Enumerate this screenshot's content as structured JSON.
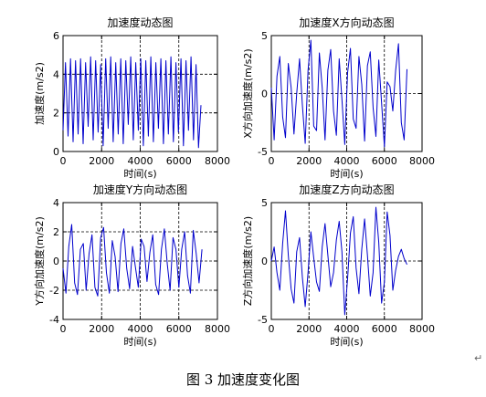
{
  "figure_caption": "图 3  加速度变化图",
  "paragraph_mark": "↵",
  "series_color": "#0000cc",
  "chart_data": [
    {
      "type": "line",
      "title": "加速度动态图",
      "xlabel": "时间(s)",
      "ylabel": "加速度(m/s2)",
      "xlim": [
        0,
        8000
      ],
      "ylim": [
        0,
        6
      ],
      "xticks": [
        0,
        2000,
        4000,
        6000,
        8000
      ],
      "yticks": [
        0,
        2,
        4,
        6
      ],
      "grid_lines_y": [
        2,
        4
      ],
      "grid_lines_x": [
        2000,
        4000,
        6000
      ],
      "grid_style": "dashed",
      "series": [
        {
          "x": [
            0,
            130,
            260,
            390,
            520,
            650,
            780,
            910,
            1040,
            1170,
            1300,
            1430,
            1560,
            1690,
            1820,
            1950,
            2080,
            2210,
            2340,
            2470,
            2600,
            2730,
            2860,
            2990,
            3120,
            3250,
            3380,
            3510,
            3640,
            3770,
            3900,
            4030,
            4160,
            4290,
            4420,
            4550,
            4680,
            4810,
            4940,
            5070,
            5200,
            5330,
            5460,
            5590,
            5720,
            5850,
            5980,
            6110,
            6240,
            6370,
            6500,
            6630,
            6760,
            6890,
            7020,
            7150
          ],
          "values": [
            1.1,
            4.6,
            0.8,
            4.8,
            0.5,
            4.7,
            0.9,
            4.8,
            0.4,
            4.6,
            1.3,
            4.9,
            0.6,
            4.7,
            1.0,
            4.5,
            0.3,
            4.8,
            1.2,
            4.9,
            0.5,
            4.6,
            0.9,
            4.8,
            0.4,
            4.7,
            1.4,
            4.9,
            0.6,
            4.6,
            1.1,
            4.8,
            0.3,
            4.7,
            0.8,
            4.9,
            0.5,
            4.6,
            1.2,
            4.8,
            0.4,
            4.7,
            0.9,
            4.9,
            0.5,
            4.6,
            1.0,
            4.8,
            0.3,
            4.7,
            1.1,
            4.9,
            0.6,
            4.5,
            0.2,
            2.4
          ]
        }
      ]
    },
    {
      "type": "line",
      "title": "加速度X方向动态图",
      "xlabel": "时间(s)",
      "ylabel": "X方向加速度(m/s2)",
      "xlim": [
        0,
        8000
      ],
      "ylim": [
        -5,
        5
      ],
      "xticks": [
        0,
        2000,
        4000,
        6000,
        8000
      ],
      "yticks": [
        -5,
        0,
        5
      ],
      "grid_lines_y": [
        0
      ],
      "grid_lines_x": [
        2000,
        4000,
        6000
      ],
      "grid_style": "dashed",
      "series": [
        {
          "x": [
            0,
            150,
            300,
            450,
            600,
            750,
            900,
            1050,
            1200,
            1350,
            1500,
            1650,
            1800,
            1950,
            2100,
            2250,
            2400,
            2550,
            2700,
            2850,
            3000,
            3150,
            3300,
            3450,
            3600,
            3750,
            3900,
            4050,
            4200,
            4350,
            4500,
            4650,
            4800,
            4950,
            5100,
            5250,
            5400,
            5550,
            5700,
            5850,
            6000,
            6150,
            6300,
            6450,
            6600,
            6750,
            6900,
            7050,
            7200
          ],
          "values": [
            0.5,
            -4.0,
            1.5,
            3.2,
            -2.0,
            -3.8,
            2.6,
            0.5,
            -3.5,
            0.0,
            3.0,
            -1.0,
            -4.3,
            2.0,
            4.6,
            -2.8,
            -3.2,
            3.5,
            0.5,
            -4.0,
            2.0,
            3.8,
            -1.5,
            -3.6,
            3.0,
            -0.5,
            -4.4,
            1.8,
            3.9,
            -2.2,
            -3.0,
            3.2,
            0.8,
            -4.1,
            2.4,
            3.6,
            -1.2,
            -3.7,
            2.9,
            -0.8,
            -4.6,
            1.0,
            0.6,
            -1.5,
            2.0,
            4.3,
            -2.5,
            -4.0,
            2.1
          ]
        }
      ]
    },
    {
      "type": "line",
      "title": "加速度Y方向动态图",
      "xlabel": "时间(s)",
      "ylabel": "Y方向加速度(m/s2)",
      "xlim": [
        0,
        8000
      ],
      "ylim": [
        -4,
        4
      ],
      "xticks": [
        0,
        2000,
        4000,
        6000,
        8000
      ],
      "yticks": [
        -4,
        -2,
        0,
        2,
        4
      ],
      "grid_lines_y": [
        -2,
        0,
        2
      ],
      "grid_lines_x": [
        2000,
        4000,
        6000
      ],
      "grid_style": "dashed",
      "series": [
        {
          "x": [
            0,
            150,
            300,
            450,
            600,
            750,
            900,
            1050,
            1200,
            1350,
            1500,
            1650,
            1800,
            1950,
            2100,
            2250,
            2400,
            2550,
            2700,
            2850,
            3000,
            3150,
            3300,
            3450,
            3600,
            3750,
            3900,
            4050,
            4200,
            4350,
            4500,
            4650,
            4800,
            4950,
            5100,
            5250,
            5400,
            5550,
            5700,
            5850,
            6000,
            6150,
            6300,
            6450,
            6600,
            6750,
            6900,
            7050,
            7200
          ],
          "values": [
            -0.5,
            -2.2,
            1.0,
            2.5,
            -1.5,
            -2.3,
            0.8,
            1.2,
            -2.0,
            0.5,
            1.8,
            -1.8,
            -2.4,
            1.6,
            2.3,
            -0.8,
            -2.2,
            1.4,
            0.3,
            -2.1,
            1.2,
            2.2,
            -0.5,
            -1.9,
            1.0,
            -0.4,
            -1.8,
            1.5,
            1.0,
            -1.4,
            0.6,
            1.8,
            -1.6,
            -2.3,
            0.8,
            2.2,
            -0.2,
            -2.0,
            1.6,
            0.8,
            -1.8,
            0.8,
            2.0,
            -1.0,
            -2.2,
            2.1,
            0.5,
            -1.5,
            0.8
          ]
        }
      ]
    },
    {
      "type": "line",
      "title": "加速度Z方向动态图",
      "xlabel": "时间(s)",
      "ylabel": "Z方向加速度(m/s2)",
      "xlim": [
        0,
        8000
      ],
      "ylim": [
        -5,
        5
      ],
      "xticks": [
        0,
        2000,
        4000,
        6000,
        8000
      ],
      "yticks": [
        -5,
        0,
        5
      ],
      "grid_lines_y": [
        0
      ],
      "grid_lines_x": [
        2000,
        4000,
        6000
      ],
      "grid_style": "dashed",
      "series": [
        {
          "x": [
            0,
            150,
            300,
            450,
            600,
            750,
            900,
            1050,
            1200,
            1350,
            1500,
            1650,
            1800,
            1950,
            2100,
            2250,
            2400,
            2550,
            2700,
            2850,
            3000,
            3150,
            3300,
            3450,
            3600,
            3750,
            3900,
            4050,
            4200,
            4350,
            4500,
            4650,
            4800,
            4950,
            5100,
            5250,
            5400,
            5550,
            5700,
            5850,
            6000,
            6150,
            6300,
            6450,
            6600,
            6750,
            6900,
            7050,
            7200
          ],
          "values": [
            0.0,
            1.2,
            -1.0,
            -2.5,
            1.5,
            4.3,
            0.5,
            -2.4,
            -3.6,
            0.8,
            2.0,
            -1.4,
            -3.9,
            -1.0,
            2.5,
            0.3,
            -1.8,
            -2.6,
            1.2,
            3.2,
            0.5,
            -2.2,
            -1.0,
            1.8,
            3.4,
            0.8,
            -4.6,
            -1.5,
            2.4,
            3.8,
            -0.6,
            -2.8,
            1.0,
            3.6,
            0.5,
            -3.0,
            -1.0,
            4.6,
            1.6,
            -3.6,
            -1.8,
            4.2,
            2.2,
            -2.5,
            -0.8,
            0.4,
            1.0,
            0.2,
            -0.3
          ]
        }
      ]
    }
  ]
}
